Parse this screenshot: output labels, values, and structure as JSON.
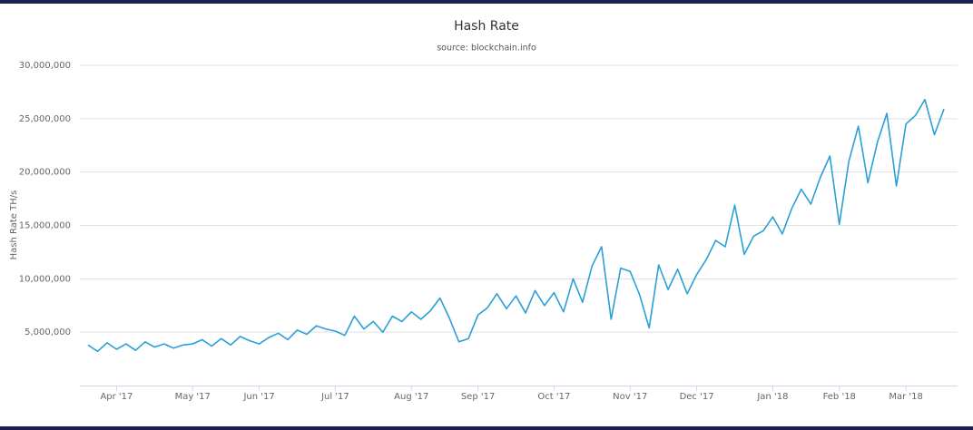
{
  "chart_data": {
    "type": "line",
    "title": "Hash Rate",
    "subtitle": "source: blockchain.info",
    "y_label": "Hash Rate TH/s",
    "color": "#2ba0d6",
    "grid": true,
    "ylim": [
      0,
      30000000
    ],
    "yticks": [
      {
        "value": 5000000,
        "label": "5,000,000"
      },
      {
        "value": 10000000,
        "label": "10,000,000"
      },
      {
        "value": 15000000,
        "label": "15,000,000"
      },
      {
        "value": 20000000,
        "label": "20,000,000"
      },
      {
        "value": 25000000,
        "label": "25,000,000"
      },
      {
        "value": 30000000,
        "label": "30,000,000"
      }
    ],
    "categories": [
      null,
      null,
      null,
      "Apr '17",
      null,
      null,
      null,
      null,
      null,
      null,
      null,
      "May '17",
      null,
      null,
      null,
      null,
      null,
      null,
      "Jun '17",
      null,
      null,
      null,
      null,
      null,
      null,
      null,
      "Jul '17",
      null,
      null,
      null,
      null,
      null,
      null,
      null,
      "Aug '17",
      null,
      null,
      null,
      null,
      null,
      null,
      "Sep '17",
      null,
      null,
      null,
      null,
      null,
      null,
      null,
      "Oct '17",
      null,
      null,
      null,
      null,
      null,
      null,
      null,
      "Nov '17",
      null,
      null,
      null,
      null,
      null,
      null,
      "Dec '17",
      null,
      null,
      null,
      null,
      null,
      null,
      null,
      "Jan '18",
      null,
      null,
      null,
      null,
      null,
      null,
      "Feb '18",
      null,
      null,
      null,
      null,
      null,
      null,
      "Mar '18",
      null,
      null,
      null,
      null
    ],
    "values": [
      3800000,
      3200000,
      4000000,
      3400000,
      3900000,
      3300000,
      4100000,
      3600000,
      3900000,
      3500000,
      3800000,
      3900000,
      4300000,
      3700000,
      4400000,
      3800000,
      4600000,
      4200000,
      3900000,
      4500000,
      4900000,
      4300000,
      5200000,
      4800000,
      5600000,
      5300000,
      5100000,
      4700000,
      6500000,
      5300000,
      6000000,
      5000000,
      6500000,
      6000000,
      6900000,
      6200000,
      7000000,
      8200000,
      6300000,
      4100000,
      4400000,
      6600000,
      7300000,
      8600000,
      7200000,
      8400000,
      6800000,
      8900000,
      7500000,
      8700000,
      6900000,
      10000000,
      7800000,
      11200000,
      13000000,
      6200000,
      11000000,
      10700000,
      8500000,
      5400000,
      11300000,
      9000000,
      10900000,
      8600000,
      10400000,
      11800000,
      13600000,
      13000000,
      16900000,
      12300000,
      14000000,
      14500000,
      15800000,
      14200000,
      16600000,
      18400000,
      17000000,
      19500000,
      21500000,
      15100000,
      21000000,
      24300000,
      19000000,
      22800000,
      25500000,
      18700000,
      24500000,
      25300000,
      26800000,
      23500000,
      25900000
    ]
  }
}
